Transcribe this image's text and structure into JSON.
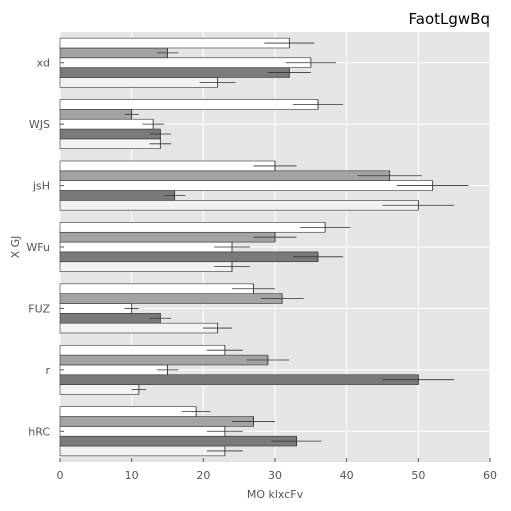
{
  "chart_data": {
    "type": "bar",
    "orientation": "horizontal",
    "title": "FaotLgwBq",
    "xlabel": "MO klxcFv",
    "ylabel": "X GJ",
    "xlim": [
      0,
      60
    ],
    "xticks": [
      0,
      10,
      20,
      30,
      40,
      50,
      60
    ],
    "grid": true,
    "legend": "none",
    "categories": [
      "hRC",
      "r",
      "FUZ",
      "WFu",
      "jsH",
      "WJS",
      "xd"
    ],
    "series": [
      {
        "color": "#f2f2f2",
        "values": [
          23,
          11,
          22,
          24,
          50,
          14,
          22
        ],
        "errors": [
          2.5,
          1,
          2,
          2.5,
          5,
          1.5,
          2.5
        ]
      },
      {
        "color": "#7a7a7a",
        "values": [
          33,
          50,
          14,
          36,
          16,
          14,
          32
        ],
        "errors": [
          3.5,
          5,
          1.5,
          3.5,
          1.5,
          1.5,
          3
        ]
      },
      {
        "color": "#ffffff",
        "values": [
          23,
          15,
          10,
          24,
          52,
          13,
          35
        ],
        "errors": [
          2.5,
          1.5,
          1,
          2.5,
          5,
          1.5,
          3.5
        ]
      },
      {
        "color": "#a3a3a3",
        "values": [
          27,
          29,
          31,
          30,
          46,
          10,
          15
        ],
        "errors": [
          3,
          3,
          3,
          3,
          4.5,
          1,
          1.5
        ]
      },
      {
        "color": "#ffffff",
        "values": [
          19,
          23,
          27,
          37,
          30,
          36,
          32
        ],
        "errors": [
          2,
          2.5,
          3,
          3.5,
          3,
          3.5,
          3.5
        ]
      }
    ]
  }
}
